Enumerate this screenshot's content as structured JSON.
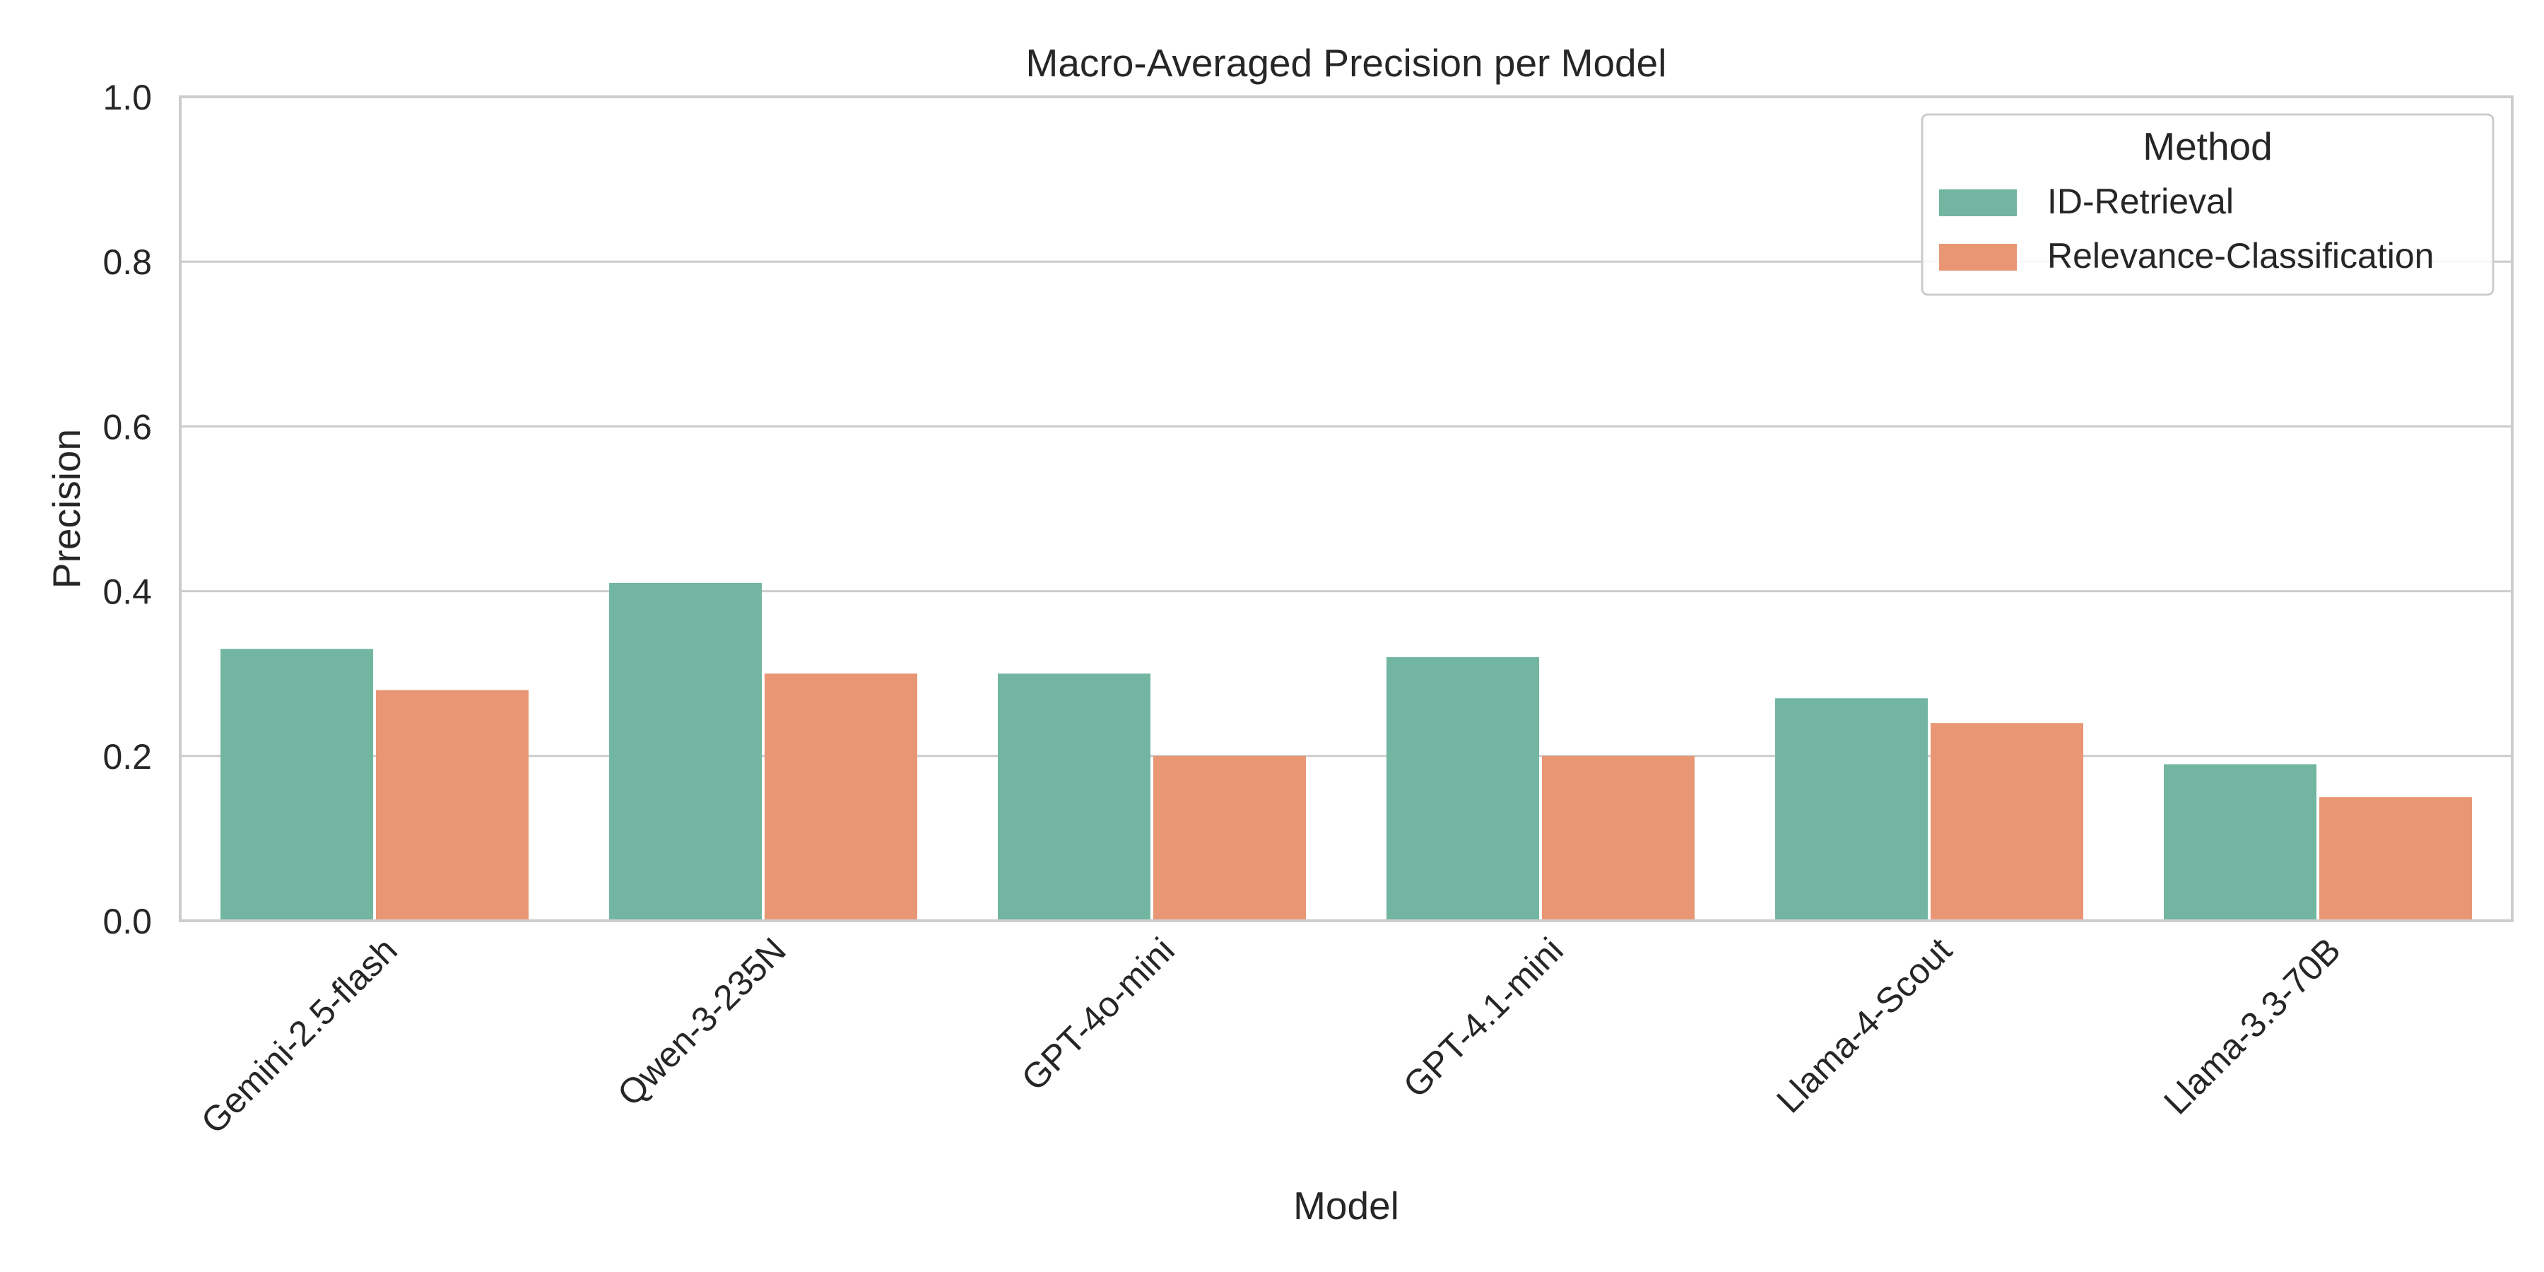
{
  "chart_data": {
    "type": "bar",
    "title": "Macro-Averaged Precision per Model",
    "xlabel": "Model",
    "ylabel": "Precision",
    "ylim": [
      0,
      1.0
    ],
    "yticks": [
      "0.0",
      "0.2",
      "0.4",
      "0.6",
      "0.8",
      "1.0"
    ],
    "ytick_values": [
      0.0,
      0.2,
      0.4,
      0.6,
      0.8,
      1.0
    ],
    "categories": [
      "Gemini-2.5-flash",
      "Qwen-3-235N",
      "GPT-4o-mini",
      "GPT-4.1-mini",
      "Llama-4-Scout",
      "Llama-3.3-70B"
    ],
    "series": [
      {
        "name": "ID-Retrieval",
        "color": "#72b6a1",
        "values": [
          0.33,
          0.41,
          0.3,
          0.32,
          0.27,
          0.19
        ]
      },
      {
        "name": "Relevance-Classification",
        "color": "#e99675",
        "values": [
          0.28,
          0.3,
          0.2,
          0.2,
          0.24,
          0.15
        ]
      }
    ],
    "legend": {
      "title": "Method",
      "placement": "top-right"
    },
    "grid": true
  }
}
